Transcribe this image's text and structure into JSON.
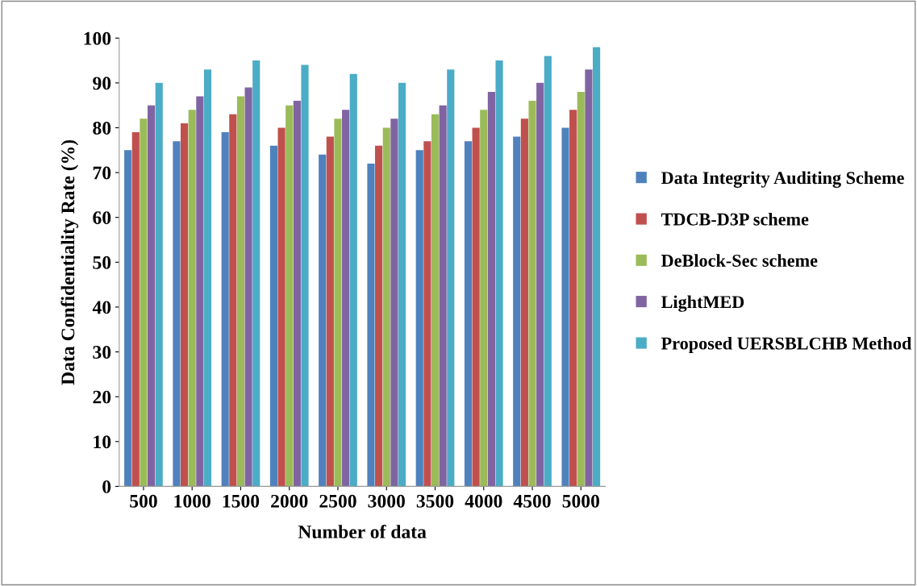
{
  "chart_data": {
    "type": "bar",
    "xlabel": "Number of data",
    "ylabel": "Data Confidentiality Rate (%)",
    "categories": [
      "500",
      "1000",
      "1500",
      "2000",
      "2500",
      "3000",
      "3500",
      "4000",
      "4500",
      "5000"
    ],
    "series": [
      {
        "name": "Data Integrity Auditing Scheme",
        "color": "#4f81bd",
        "values": [
          75,
          77,
          79,
          76,
          74,
          72,
          75,
          77,
          78,
          80
        ]
      },
      {
        "name": "TDCB-D3P scheme",
        "color": "#c0504d",
        "values": [
          79,
          81,
          83,
          80,
          78,
          76,
          77,
          80,
          82,
          84
        ]
      },
      {
        "name": "DeBlock-Sec scheme",
        "color": "#9bbb59",
        "values": [
          82,
          84,
          87,
          85,
          82,
          80,
          83,
          84,
          86,
          88
        ]
      },
      {
        "name": "LightMED",
        "color": "#8064a2",
        "values": [
          85,
          87,
          89,
          86,
          84,
          82,
          85,
          88,
          90,
          93
        ]
      },
      {
        "name": "Proposed UERSBLCHB Method",
        "color": "#4bacc6",
        "values": [
          90,
          93,
          95,
          94,
          92,
          90,
          93,
          95,
          96,
          98
        ]
      }
    ],
    "ylim": [
      0,
      100
    ],
    "yticks": [
      0,
      10,
      20,
      30,
      40,
      50,
      60,
      70,
      80,
      90,
      100
    ],
    "grid": false,
    "legend": "right"
  }
}
